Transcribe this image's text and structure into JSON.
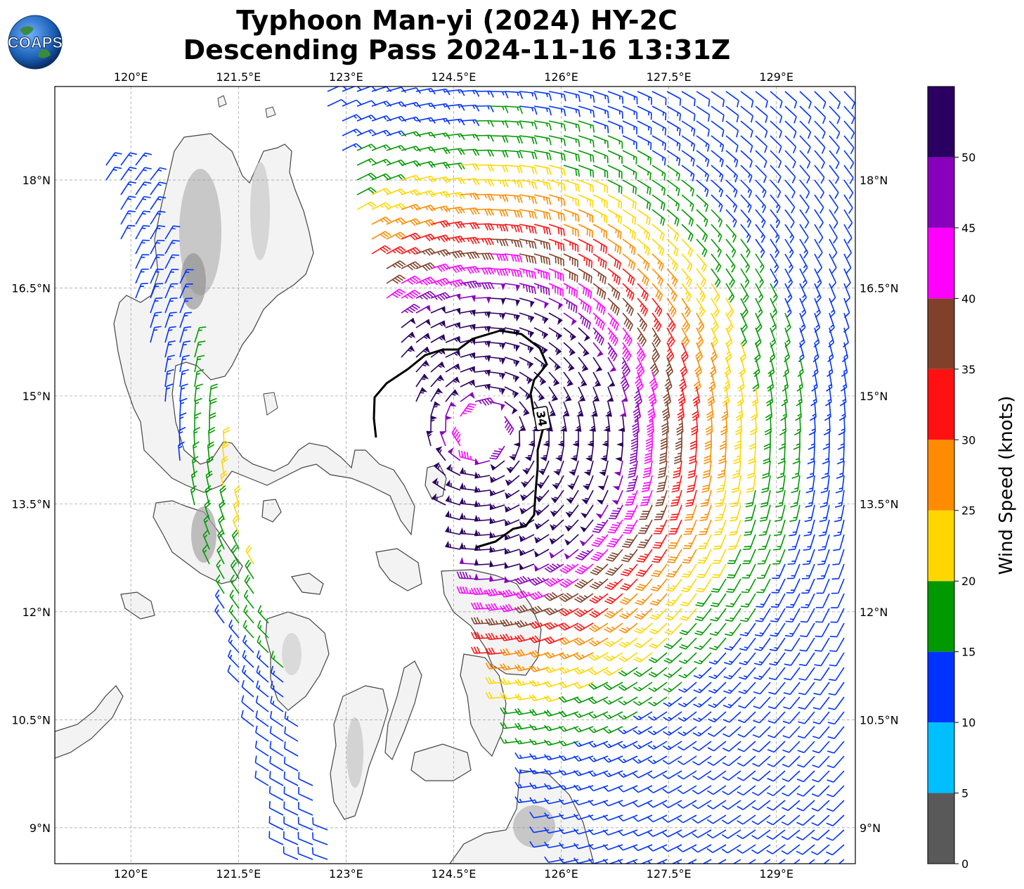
{
  "title": {
    "line1": "Typhoon Man-yi (2024) HY-2C",
    "line2": "Descending Pass 2024-11-16 13:31Z"
  },
  "logo": {
    "text": "COAPS",
    "icon": "globe-icon",
    "color": "#1a5fb4"
  },
  "chart_data": {
    "type": "wind-barb-map",
    "x_ticks": [
      "120°E",
      "121.5°E",
      "123°E",
      "124.5°E",
      "126°E",
      "127.5°E",
      "129°E"
    ],
    "x_values": [
      120,
      121.5,
      123,
      124.5,
      126,
      127.5,
      129
    ],
    "y_ticks": [
      "18°N",
      "16.5°N",
      "15°N",
      "13.5°N",
      "12°N",
      "10.5°N",
      "9°N"
    ],
    "y_values": [
      18,
      16.5,
      15,
      13.5,
      12,
      10.5,
      9
    ],
    "lon_range": [
      118.94,
      130.1
    ],
    "lat_range": [
      8.5,
      19.3
    ],
    "grid": true,
    "center": {
      "lon": 124.9,
      "lat": 14.5
    },
    "contour_label": "34",
    "colorbar": {
      "label": "Wind Speed (knots)",
      "tick_labels": [
        "0",
        "5",
        "10",
        "15",
        "20",
        "25",
        "30",
        "35",
        "40",
        "45",
        "50"
      ],
      "bins": [
        {
          "min": 0,
          "max": 5,
          "color": "#595959"
        },
        {
          "min": 5,
          "max": 10,
          "color": "#00bfff"
        },
        {
          "min": 10,
          "max": 15,
          "color": "#0033ff"
        },
        {
          "min": 15,
          "max": 20,
          "color": "#009900"
        },
        {
          "min": 20,
          "max": 25,
          "color": "#ffd700"
        },
        {
          "min": 25,
          "max": 30,
          "color": "#ff8c00"
        },
        {
          "min": 30,
          "max": 35,
          "color": "#ff1111"
        },
        {
          "min": 35,
          "max": 40,
          "color": "#80402a"
        },
        {
          "min": 40,
          "max": 45,
          "color": "#ff00ff"
        },
        {
          "min": 45,
          "max": 50,
          "color": "#8800bb"
        },
        {
          "min": 50,
          "max": 55,
          "color": "#2a0060"
        }
      ]
    }
  }
}
